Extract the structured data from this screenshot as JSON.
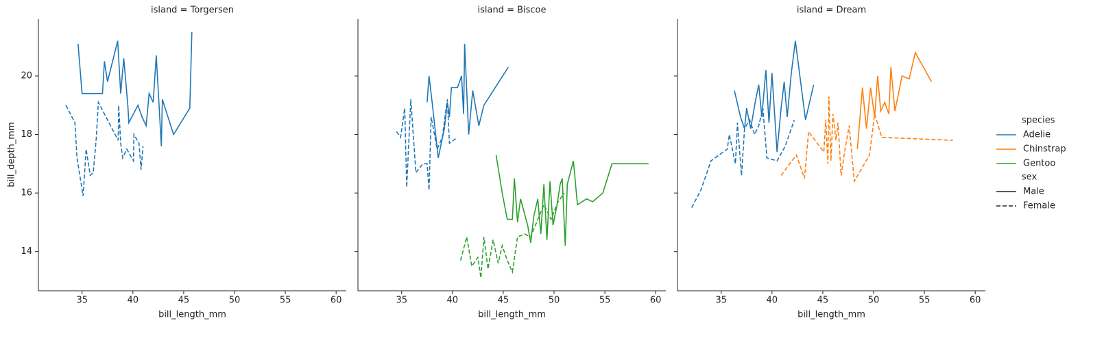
{
  "chart_data": {
    "type": "line",
    "xlabel": "bill_length_mm",
    "ylabel": "bill_depth_mm",
    "xlim": [
      30.7,
      61.0
    ],
    "ylim": [
      12.66,
      21.94
    ],
    "xticks": [
      35,
      40,
      45,
      50,
      55,
      60
    ],
    "yticks": [
      14,
      16,
      18,
      20
    ],
    "legend_position": "right",
    "hue_title": "species",
    "hues": [
      {
        "name": "Adelie",
        "color": "#1f77b4"
      },
      {
        "name": "Chinstrap",
        "color": "#ff7f0e"
      },
      {
        "name": "Gentoo",
        "color": "#2ca02c"
      }
    ],
    "style_title": "sex",
    "styles": [
      {
        "name": "Male",
        "dash": "solid"
      },
      {
        "name": "Female",
        "dash": "dashed"
      }
    ],
    "panels": [
      {
        "title": "island = Torgersen",
        "series": [
          {
            "species": 0,
            "sex": 0,
            "x": [
              34.6,
              35.0,
              37.0,
              37.2,
              37.5,
              38.5,
              38.8,
              39.1,
              39.5,
              39.6,
              40.5,
              40.9,
              41.3,
              41.6,
              42.0,
              42.3,
              42.8,
              42.9,
              44.0,
              45.6,
              45.8
            ],
            "values": [
              21.1,
              19.4,
              19.4,
              20.5,
              19.8,
              21.2,
              19.4,
              20.6,
              19.0,
              18.4,
              19.0,
              18.6,
              18.3,
              19.4,
              19.1,
              20.7,
              17.6,
              19.2,
              18.0,
              18.9,
              21.5
            ]
          },
          {
            "species": 0,
            "sex": 1,
            "x": [
              33.4,
              34.3,
              34.5,
              35.1,
              35.4,
              35.8,
              36.1,
              36.4,
              36.6,
              38.4,
              38.55,
              38.6,
              38.8,
              39.0,
              39.4,
              40.05,
              40.1,
              40.6,
              40.8,
              41.0
            ],
            "values": [
              19.0,
              18.4,
              17.2,
              15.9,
              17.5,
              16.6,
              16.7,
              17.9,
              19.1,
              17.9,
              17.8,
              19.0,
              17.7,
              17.2,
              17.5,
              17.1,
              18.0,
              17.7,
              16.8,
              17.6
            ]
          }
        ]
      },
      {
        "title": "island = Biscoe",
        "series": [
          {
            "species": 0,
            "sex": 0,
            "x": [
              37.5,
              37.7,
              38.0,
              38.6,
              39.2,
              39.5,
              39.7,
              39.9,
              40.5,
              40.9,
              41.1,
              41.2,
              41.6,
              42.0,
              42.6,
              43.1,
              45.5
            ],
            "values": [
              19.1,
              20.0,
              19.1,
              17.2,
              18.2,
              19.1,
              18.6,
              19.6,
              19.6,
              20.0,
              18.7,
              21.1,
              18.0,
              19.5,
              18.3,
              19.0,
              20.3
            ]
          },
          {
            "species": 0,
            "sex": 1,
            "x": [
              34.5,
              34.9,
              35.3,
              35.5,
              35.9,
              36.4,
              37.1,
              37.5,
              37.7,
              37.9,
              38.5,
              39.0,
              39.5,
              39.7,
              40.5
            ],
            "values": [
              18.1,
              17.9,
              18.9,
              16.2,
              19.2,
              16.7,
              17.0,
              17.0,
              16.1,
              18.6,
              17.5,
              17.9,
              19.2,
              17.7,
              17.9
            ]
          },
          {
            "species": 2,
            "sex": 0,
            "x": [
              44.3,
              44.9,
              45.4,
              45.9,
              46.1,
              46.4,
              46.7,
              47.4,
              47.7,
              48.0,
              48.4,
              48.7,
              49.0,
              49.3,
              49.6,
              49.9,
              50.3,
              50.6,
              50.8,
              51.1,
              51.3,
              51.9,
              52.3,
              53.2,
              53.8,
              54.8,
              55.7,
              59.3
            ],
            "values": [
              17.3,
              16.0,
              15.1,
              15.1,
              16.5,
              15.0,
              15.8,
              14.9,
              14.3,
              15.2,
              15.8,
              14.6,
              16.3,
              14.4,
              16.4,
              14.9,
              15.6,
              16.3,
              16.5,
              14.2,
              16.3,
              17.1,
              15.6,
              15.8,
              15.7,
              16.0,
              17.0,
              17.0
            ]
          },
          {
            "species": 2,
            "sex": 1,
            "x": [
              40.8,
              41.4,
              41.9,
              42.5,
              42.8,
              43.1,
              43.5,
              44.0,
              44.5,
              44.9,
              45.4,
              45.9,
              46.4,
              47.1,
              47.7,
              48.4,
              49.0,
              49.7,
              50.4,
              51.0
            ],
            "values": [
              13.7,
              14.5,
              13.5,
              13.8,
              13.1,
              14.5,
              13.4,
              14.4,
              13.6,
              14.2,
              13.7,
              13.3,
              14.5,
              14.6,
              14.5,
              15.1,
              15.6,
              15.1,
              15.7,
              16.0
            ]
          }
        ]
      },
      {
        "title": "island = Dream",
        "series": [
          {
            "species": 0,
            "sex": 0,
            "x": [
              36.3,
              36.9,
              37.3,
              37.5,
              37.9,
              38.4,
              38.7,
              39.0,
              39.4,
              39.7,
              40.0,
              40.5,
              40.9,
              41.2,
              41.5,
              41.9,
              42.3,
              43.3,
              44.1
            ],
            "values": [
              19.5,
              18.6,
              18.2,
              18.9,
              18.2,
              19.2,
              19.7,
              18.6,
              20.2,
              18.4,
              20.1,
              17.4,
              18.9,
              19.8,
              18.6,
              20.1,
              21.2,
              18.5,
              19.7
            ]
          },
          {
            "species": 0,
            "sex": 1,
            "x": [
              32.1,
              33.0,
              34.0,
              35.6,
              35.8,
              36.4,
              36.6,
              37.0,
              37.3,
              37.8,
              38.3,
              38.7,
              39.1,
              39.5,
              40.5,
              41.3,
              42.2
            ],
            "values": [
              15.5,
              16.1,
              17.1,
              17.5,
              18.0,
              17.0,
              18.4,
              16.6,
              18.2,
              18.5,
              18.0,
              18.3,
              18.9,
              17.2,
              17.1,
              17.6,
              18.5
            ]
          },
          {
            "species": 1,
            "sex": 0,
            "x": [
              48.4,
              48.9,
              49.3,
              49.7,
              50.1,
              50.4,
              50.7,
              51.1,
              51.5,
              51.7,
              52.1,
              52.8,
              53.5,
              54.1,
              55.7
            ],
            "values": [
              17.5,
              19.6,
              18.2,
              19.6,
              18.6,
              20.0,
              18.8,
              19.1,
              18.7,
              20.3,
              18.8,
              20.0,
              19.9,
              20.8,
              19.8
            ]
          },
          {
            "species": 1,
            "sex": 1,
            "x": [
              40.9,
              42.4,
              43.2,
              43.6,
              45.1,
              45.3,
              45.5,
              45.6,
              45.8,
              46.0,
              46.3,
              46.5,
              46.8,
              47.1,
              47.6,
              48.1,
              49.6,
              50.1,
              50.8,
              57.8
            ],
            "values": [
              16.6,
              17.3,
              16.5,
              18.1,
              17.4,
              18.5,
              17.0,
              19.3,
              17.1,
              18.7,
              17.8,
              18.4,
              16.6,
              17.3,
              18.3,
              16.4,
              17.3,
              18.7,
              17.9,
              17.8
            ]
          }
        ]
      }
    ]
  }
}
